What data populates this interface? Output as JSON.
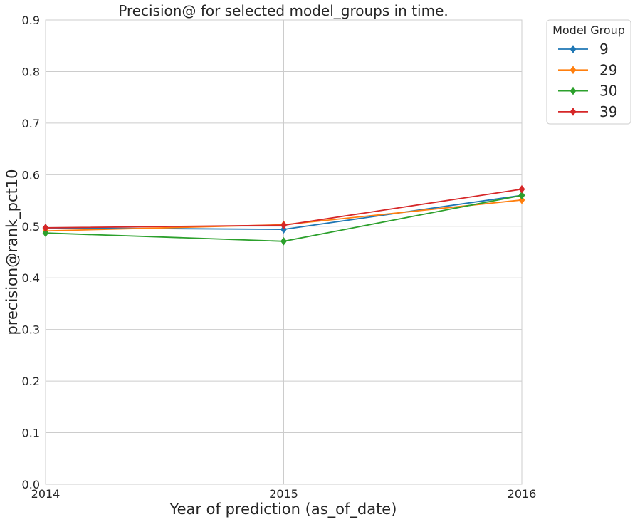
{
  "chart_data": {
    "type": "line",
    "title": "Precision@ for selected model_groups in time.",
    "xlabel": "Year of prediction (as_of_date)",
    "ylabel": "precision@rank_pct10",
    "categories": [
      "2014",
      "2015",
      "2016"
    ],
    "ylim": [
      0,
      0.9
    ],
    "yticks": [
      "0.0",
      "0.1",
      "0.2",
      "0.3",
      "0.4",
      "0.5",
      "0.6",
      "0.7",
      "0.8",
      "0.9"
    ],
    "grid": true,
    "legend": {
      "title": "Model Group",
      "placement": "outside top-right"
    },
    "series": [
      {
        "name": "9",
        "color": "#1f77b4",
        "values": [
          0.497,
          0.494,
          0.56
        ]
      },
      {
        "name": "29",
        "color": "#ff7f0e",
        "values": [
          0.491,
          0.503,
          0.551
        ]
      },
      {
        "name": "30",
        "color": "#2ca02c",
        "values": [
          0.487,
          0.471,
          0.56
        ]
      },
      {
        "name": "39",
        "color": "#d62728",
        "values": [
          0.497,
          0.502,
          0.572
        ]
      }
    ],
    "marker": "diamond"
  }
}
